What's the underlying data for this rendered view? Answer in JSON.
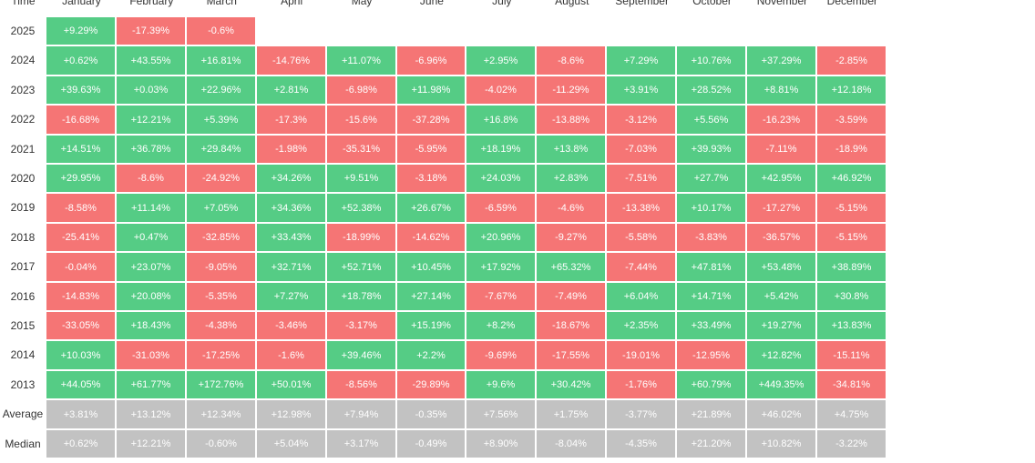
{
  "chart_data": {
    "type": "heatmap",
    "corner_label": "Time",
    "columns": [
      "January",
      "February",
      "March",
      "April",
      "May",
      "June",
      "July",
      "August",
      "September",
      "October",
      "November",
      "December"
    ],
    "rows": [
      {
        "label": "2025",
        "values": [
          "+9.29%",
          "-17.39%",
          "-0.6%"
        ]
      },
      {
        "label": "2024",
        "values": [
          "+0.62%",
          "+43.55%",
          "+16.81%",
          "-14.76%",
          "+11.07%",
          "-6.96%",
          "+2.95%",
          "-8.6%",
          "+7.29%",
          "+10.76%",
          "+37.29%",
          "-2.85%"
        ]
      },
      {
        "label": "2023",
        "values": [
          "+39.63%",
          "+0.03%",
          "+22.96%",
          "+2.81%",
          "-6.98%",
          "+11.98%",
          "-4.02%",
          "-11.29%",
          "+3.91%",
          "+28.52%",
          "+8.81%",
          "+12.18%"
        ]
      },
      {
        "label": "2022",
        "values": [
          "-16.68%",
          "+12.21%",
          "+5.39%",
          "-17.3%",
          "-15.6%",
          "-37.28%",
          "+16.8%",
          "-13.88%",
          "-3.12%",
          "+5.56%",
          "-16.23%",
          "-3.59%"
        ]
      },
      {
        "label": "2021",
        "values": [
          "+14.51%",
          "+36.78%",
          "+29.84%",
          "-1.98%",
          "-35.31%",
          "-5.95%",
          "+18.19%",
          "+13.8%",
          "-7.03%",
          "+39.93%",
          "-7.11%",
          "-18.9%"
        ]
      },
      {
        "label": "2020",
        "values": [
          "+29.95%",
          "-8.6%",
          "-24.92%",
          "+34.26%",
          "+9.51%",
          "-3.18%",
          "+24.03%",
          "+2.83%",
          "-7.51%",
          "+27.7%",
          "+42.95%",
          "+46.92%"
        ]
      },
      {
        "label": "2019",
        "values": [
          "-8.58%",
          "+11.14%",
          "+7.05%",
          "+34.36%",
          "+52.38%",
          "+26.67%",
          "-6.59%",
          "-4.6%",
          "-13.38%",
          "+10.17%",
          "-17.27%",
          "-5.15%"
        ]
      },
      {
        "label": "2018",
        "values": [
          "-25.41%",
          "+0.47%",
          "-32.85%",
          "+33.43%",
          "-18.99%",
          "-14.62%",
          "+20.96%",
          "-9.27%",
          "-5.58%",
          "-3.83%",
          "-36.57%",
          "-5.15%"
        ]
      },
      {
        "label": "2017",
        "values": [
          "-0.04%",
          "+23.07%",
          "-9.05%",
          "+32.71%",
          "+52.71%",
          "+10.45%",
          "+17.92%",
          "+65.32%",
          "-7.44%",
          "+47.81%",
          "+53.48%",
          "+38.89%"
        ]
      },
      {
        "label": "2016",
        "values": [
          "-14.83%",
          "+20.08%",
          "-5.35%",
          "+7.27%",
          "+18.78%",
          "+27.14%",
          "-7.67%",
          "-7.49%",
          "+6.04%",
          "+14.71%",
          "+5.42%",
          "+30.8%"
        ]
      },
      {
        "label": "2015",
        "values": [
          "-33.05%",
          "+18.43%",
          "-4.38%",
          "-3.46%",
          "-3.17%",
          "+15.19%",
          "+8.2%",
          "-18.67%",
          "+2.35%",
          "+33.49%",
          "+19.27%",
          "+13.83%"
        ]
      },
      {
        "label": "2014",
        "values": [
          "+10.03%",
          "-31.03%",
          "-17.25%",
          "-1.6%",
          "+39.46%",
          "+2.2%",
          "-9.69%",
          "-17.55%",
          "-19.01%",
          "-12.95%",
          "+12.82%",
          "-15.11%"
        ]
      },
      {
        "label": "2013",
        "values": [
          "+44.05%",
          "+61.77%",
          "+172.76%",
          "+50.01%",
          "-8.56%",
          "-29.89%",
          "+9.6%",
          "+30.42%",
          "-1.76%",
          "+60.79%",
          "+449.35%",
          "-34.81%"
        ]
      }
    ],
    "summary_rows": [
      {
        "label": "Average",
        "values": [
          "+3.81%",
          "+13.12%",
          "+12.34%",
          "+12.98%",
          "+7.94%",
          "-0.35%",
          "+7.56%",
          "+1.75%",
          "-3.77%",
          "+21.89%",
          "+46.02%",
          "+4.75%"
        ]
      },
      {
        "label": "Median",
        "values": [
          "+0.62%",
          "+12.21%",
          "-0.60%",
          "+5.04%",
          "+3.17%",
          "-0.49%",
          "+8.90%",
          "-8.04%",
          "-4.35%",
          "+21.20%",
          "+10.82%",
          "-3.22%"
        ]
      }
    ],
    "colors": {
      "positive": "#55cc85",
      "negative": "#f57575",
      "summary": "#c2c2c2",
      "cell_text": "#ffffff",
      "label_text": "#333333"
    }
  }
}
